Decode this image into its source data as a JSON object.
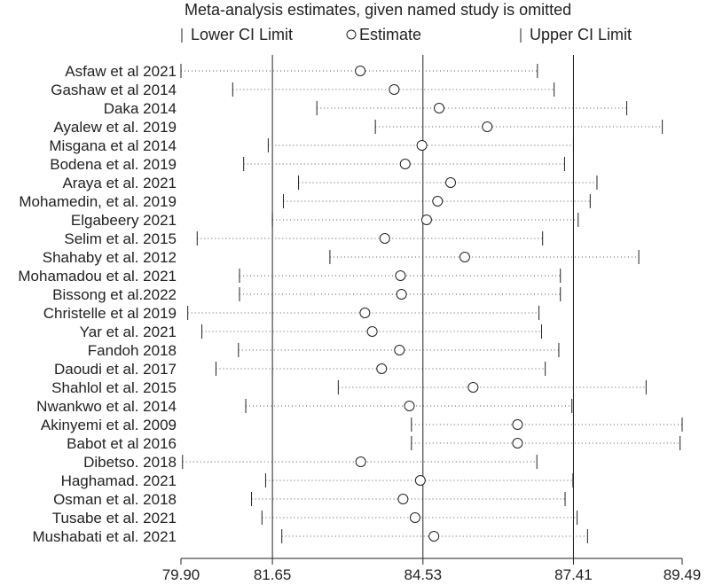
{
  "chart_data": {
    "type": "forest",
    "title": "Meta-analysis estimates, given named study is omitted",
    "legend": {
      "lower": "Lower CI Limit",
      "estimate": "Estimate",
      "upper": "Upper CI Limit"
    },
    "x_ticks": [
      {
        "value": 79.9,
        "label": "79.90"
      },
      {
        "value": 81.65,
        "label": "81.65"
      },
      {
        "value": 84.53,
        "label": "84.53"
      },
      {
        "value": 87.41,
        "label": "87.41"
      },
      {
        "value": 89.49,
        "label": "89.49"
      }
    ],
    "xlim": [
      79.9,
      89.49
    ],
    "reference_lines": [
      81.65,
      84.53,
      87.41
    ],
    "studies": [
      {
        "name": "Asfaw et al 2021",
        "lower": 79.9,
        "estimate": 83.33,
        "upper": 86.72
      },
      {
        "name": "Gashaw et al 2014",
        "lower": 80.89,
        "estimate": 83.98,
        "upper": 87.04
      },
      {
        "name": "Daka 2014",
        "lower": 82.5,
        "estimate": 84.84,
        "upper": 88.43
      },
      {
        "name": "Ayalew et al.  2019",
        "lower": 83.62,
        "estimate": 85.76,
        "upper": 89.11
      },
      {
        "name": "Misgana et al  2014",
        "lower": 81.57,
        "estimate": 84.51,
        "upper": 87.41
      },
      {
        "name": "Bodena et al. 2019",
        "lower": 81.1,
        "estimate": 84.19,
        "upper": 87.24
      },
      {
        "name": "Araya et al. 2021",
        "lower": 82.15,
        "estimate": 85.06,
        "upper": 87.86
      },
      {
        "name": "Mohamedin, et al. 2019",
        "lower": 81.86,
        "estimate": 84.81,
        "upper": 87.73
      },
      {
        "name": "Elgabeery 2021",
        "lower": 81.65,
        "estimate": 84.6,
        "upper": 87.5
      },
      {
        "name": "Selim et al. 2015",
        "lower": 80.21,
        "estimate": 83.8,
        "upper": 86.82
      },
      {
        "name": "Shahaby et al. 2012",
        "lower": 82.75,
        "estimate": 85.33,
        "upper": 88.66
      },
      {
        "name": "Mohamadou et al. 2021",
        "lower": 81.02,
        "estimate": 84.1,
        "upper": 87.16
      },
      {
        "name": "Bissong et al.2022",
        "lower": 81.02,
        "estimate": 84.12,
        "upper": 87.16
      },
      {
        "name": "Christelle et al 2019",
        "lower": 80.03,
        "estimate": 83.42,
        "upper": 86.75
      },
      {
        "name": "Yar et al. 2021",
        "lower": 80.3,
        "estimate": 83.56,
        "upper": 86.8
      },
      {
        "name": "Fandoh 2018",
        "lower": 81.0,
        "estimate": 84.08,
        "upper": 87.13
      },
      {
        "name": "Daoudi et al. 2017",
        "lower": 80.57,
        "estimate": 83.74,
        "upper": 86.87
      },
      {
        "name": "Shahlol et al. 2015",
        "lower": 82.91,
        "estimate": 85.49,
        "upper": 88.8
      },
      {
        "name": "Nwankwo et al. 2014",
        "lower": 81.14,
        "estimate": 84.27,
        "upper": 87.38
      },
      {
        "name": "Akinyemi et al. 2009",
        "lower": 84.31,
        "estimate": 86.34,
        "upper": 89.49
      },
      {
        "name": "Babot et al 2016",
        "lower": 84.31,
        "estimate": 86.34,
        "upper": 89.45
      },
      {
        "name": "Dibetso. 2018",
        "lower": 79.93,
        "estimate": 83.34,
        "upper": 86.71
      },
      {
        "name": "Haghamad. 2021",
        "lower": 81.52,
        "estimate": 84.48,
        "upper": 87.4
      },
      {
        "name": "Osman et al. 2018",
        "lower": 81.25,
        "estimate": 84.15,
        "upper": 87.25
      },
      {
        "name": "Tusabe et al. 2021",
        "lower": 81.45,
        "estimate": 84.38,
        "upper": 87.48
      },
      {
        "name": "Mushabati et al. 2021",
        "lower": 81.83,
        "estimate": 84.74,
        "upper": 87.68
      }
    ]
  }
}
